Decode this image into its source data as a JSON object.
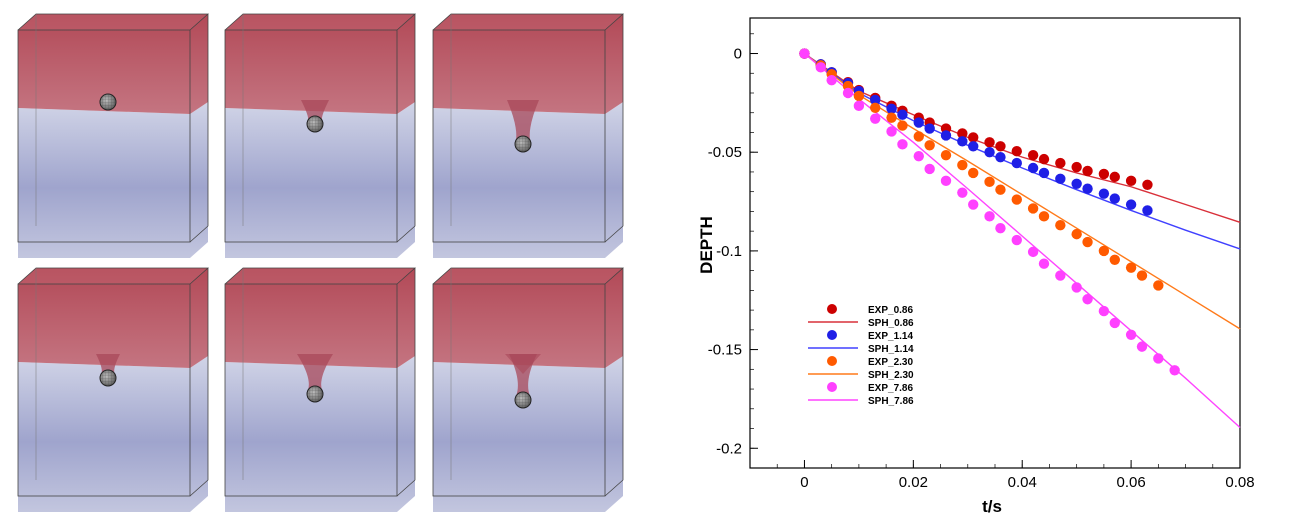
{
  "panels": {
    "count": 6,
    "colors": {
      "upper_fluid": "#a8363f",
      "lower_fluid": "#7f86b9",
      "sphere": "#8a8a8a"
    },
    "cavity_stage": [
      0,
      1,
      2,
      3,
      4,
      5
    ]
  },
  "chart_data": {
    "type": "scatter",
    "title": "",
    "xlabel": "t/s",
    "ylabel": "DEPTH",
    "xlim": [
      -0.01,
      0.08
    ],
    "ylim": [
      -0.21,
      0.018
    ],
    "xticks": [
      0,
      0.02,
      0.04,
      0.06,
      0.08
    ],
    "xtick_labels": [
      "0",
      "0.02",
      "0.04",
      "0.06",
      "0.08"
    ],
    "yticks": [
      0,
      -0.05,
      -0.1,
      -0.15,
      -0.2
    ],
    "ytick_labels": [
      "0",
      "-0.05",
      "-0.1",
      "-0.15",
      "-0.2"
    ],
    "grid": false,
    "legend_position": "lower-left",
    "legend": [
      "EXP_0.86",
      "SPH_0.86",
      "EXP_1.14",
      "SPH_1.14",
      "EXP_2.30",
      "SPH_2.30",
      "EXP_7.86",
      "SPH_7.86"
    ],
    "series": [
      {
        "name": "EXP_0.86",
        "kind": "points",
        "color": "#cc0000",
        "x": [
          0,
          0.003,
          0.005,
          0.008,
          0.01,
          0.013,
          0.016,
          0.018,
          0.021,
          0.023,
          0.026,
          0.029,
          0.031,
          0.034,
          0.036,
          0.039,
          0.042,
          0.044,
          0.047,
          0.05,
          0.052,
          0.055,
          0.057,
          0.06,
          0.063
        ],
        "y": [
          0,
          -0.0055,
          -0.0095,
          -0.0145,
          -0.0185,
          -0.0225,
          -0.0265,
          -0.029,
          -0.0325,
          -0.035,
          -0.038,
          -0.0405,
          -0.0425,
          -0.045,
          -0.047,
          -0.0495,
          -0.0515,
          -0.0535,
          -0.0555,
          -0.0575,
          -0.0595,
          -0.061,
          -0.0625,
          -0.0645,
          -0.0665
        ]
      },
      {
        "name": "SPH_0.86",
        "kind": "line",
        "color": "#d9303a",
        "x": [
          0,
          0.01,
          0.02,
          0.03,
          0.04,
          0.05,
          0.06,
          0.07,
          0.08
        ],
        "y": [
          0,
          -0.019,
          -0.031,
          -0.0425,
          -0.0525,
          -0.0605,
          -0.0675,
          -0.0765,
          -0.0855
        ]
      },
      {
        "name": "EXP_1.14",
        "kind": "points",
        "color": "#1f1fe6",
        "x": [
          0,
          0.003,
          0.005,
          0.008,
          0.01,
          0.013,
          0.016,
          0.018,
          0.021,
          0.023,
          0.026,
          0.029,
          0.031,
          0.034,
          0.036,
          0.039,
          0.042,
          0.044,
          0.047,
          0.05,
          0.052,
          0.055,
          0.057,
          0.06,
          0.063
        ],
        "y": [
          0,
          -0.0055,
          -0.0095,
          -0.015,
          -0.019,
          -0.0235,
          -0.028,
          -0.031,
          -0.035,
          -0.038,
          -0.0415,
          -0.0445,
          -0.047,
          -0.05,
          -0.0525,
          -0.0555,
          -0.058,
          -0.0605,
          -0.0635,
          -0.066,
          -0.0685,
          -0.071,
          -0.0735,
          -0.0765,
          -0.0795
        ]
      },
      {
        "name": "SPH_1.14",
        "kind": "line",
        "color": "#4040ff",
        "x": [
          0,
          0.01,
          0.02,
          0.03,
          0.04,
          0.05,
          0.06,
          0.07,
          0.08
        ],
        "y": [
          0,
          -0.02,
          -0.034,
          -0.0465,
          -0.058,
          -0.069,
          -0.0795,
          -0.0895,
          -0.099
        ]
      },
      {
        "name": "EXP_2.30",
        "kind": "points",
        "color": "#ff5a00",
        "x": [
          0,
          0.003,
          0.005,
          0.008,
          0.01,
          0.013,
          0.016,
          0.018,
          0.021,
          0.023,
          0.026,
          0.029,
          0.031,
          0.034,
          0.036,
          0.039,
          0.042,
          0.044,
          0.047,
          0.05,
          0.052,
          0.055,
          0.057,
          0.06,
          0.062,
          0.065
        ],
        "y": [
          0,
          -0.006,
          -0.0105,
          -0.0165,
          -0.0215,
          -0.0275,
          -0.0325,
          -0.0365,
          -0.042,
          -0.0465,
          -0.0515,
          -0.0565,
          -0.0605,
          -0.065,
          -0.069,
          -0.074,
          -0.0785,
          -0.0825,
          -0.087,
          -0.0915,
          -0.0955,
          -0.1,
          -0.1045,
          -0.1085,
          -0.1125,
          -0.1175
        ]
      },
      {
        "name": "SPH_2.30",
        "kind": "line",
        "color": "#ff7a1a",
        "x": [
          0,
          0.01,
          0.02,
          0.03,
          0.04,
          0.05,
          0.06,
          0.07,
          0.08
        ],
        "y": [
          0,
          -0.021,
          -0.038,
          -0.0545,
          -0.0715,
          -0.0885,
          -0.1055,
          -0.1225,
          -0.1395
        ]
      },
      {
        "name": "EXP_7.86",
        "kind": "points",
        "color": "#ff40ff",
        "x": [
          0,
          0.003,
          0.005,
          0.008,
          0.01,
          0.013,
          0.016,
          0.018,
          0.021,
          0.023,
          0.026,
          0.029,
          0.031,
          0.034,
          0.036,
          0.039,
          0.042,
          0.044,
          0.047,
          0.05,
          0.052,
          0.055,
          0.057,
          0.06,
          0.062,
          0.065,
          0.068
        ],
        "y": [
          0,
          -0.007,
          -0.0135,
          -0.02,
          -0.0265,
          -0.033,
          -0.0395,
          -0.046,
          -0.052,
          -0.0585,
          -0.0645,
          -0.0705,
          -0.0765,
          -0.0825,
          -0.0885,
          -0.0945,
          -0.1005,
          -0.1065,
          -0.1125,
          -0.1185,
          -0.1245,
          -0.1305,
          -0.1365,
          -0.1425,
          -0.1485,
          -0.1545,
          -0.1605
        ]
      },
      {
        "name": "SPH_7.86",
        "kind": "line",
        "color": "#ff44ff",
        "x": [
          0,
          0.01,
          0.02,
          0.03,
          0.04,
          0.05,
          0.06,
          0.07,
          0.08
        ],
        "y": [
          0,
          -0.023,
          -0.045,
          -0.0685,
          -0.0925,
          -0.1165,
          -0.1405,
          -0.1645,
          -0.1895
        ]
      }
    ]
  }
}
